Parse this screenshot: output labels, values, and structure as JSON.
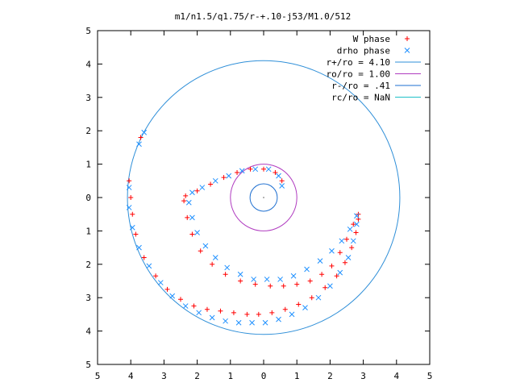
{
  "chart_data": {
    "type": "scatter",
    "title": "m1/n1.5/q1.75/r-+.10-j53/M1.0/512",
    "xlabel": "",
    "ylabel": "",
    "xlim": [
      -5,
      5
    ],
    "ylim": [
      -5,
      5
    ],
    "x_tick_labels": [
      "5",
      "4",
      "3",
      "2",
      "1",
      "0",
      "1",
      "2",
      "3",
      "4",
      "5"
    ],
    "y_tick_labels": [
      "5",
      "4",
      "3",
      "2",
      "1",
      "0",
      "1",
      "2",
      "3",
      "4",
      "5"
    ],
    "grid": false,
    "legend_position": "top-right",
    "series": [
      {
        "name": "W phase",
        "marker": "plus",
        "color": "#ff0000",
        "points": [
          [
            -3.7,
            1.8
          ],
          [
            -4.05,
            0.5
          ],
          [
            -4.0,
            0.0
          ],
          [
            -3.95,
            -0.5
          ],
          [
            -3.85,
            -1.1
          ],
          [
            -3.6,
            -1.8
          ],
          [
            -3.25,
            -2.35
          ],
          [
            -2.9,
            -2.75
          ],
          [
            -2.5,
            -3.05
          ],
          [
            -2.1,
            -3.25
          ],
          [
            -1.7,
            -3.35
          ],
          [
            -1.3,
            -3.4
          ],
          [
            -0.9,
            -3.45
          ],
          [
            -0.5,
            -3.5
          ],
          [
            -0.15,
            -3.5
          ],
          [
            0.25,
            -3.45
          ],
          [
            0.65,
            -3.35
          ],
          [
            1.05,
            -3.2
          ],
          [
            1.45,
            -3.0
          ],
          [
            1.85,
            -2.7
          ],
          [
            2.2,
            -2.35
          ],
          [
            2.45,
            -1.95
          ],
          [
            2.65,
            -1.5
          ],
          [
            2.78,
            -1.05
          ],
          [
            2.85,
            -0.65
          ],
          [
            2.85,
            -0.5
          ],
          [
            2.7,
            -0.8
          ],
          [
            2.5,
            -1.25
          ],
          [
            2.3,
            -1.65
          ],
          [
            2.05,
            -2.05
          ],
          [
            1.75,
            -2.3
          ],
          [
            1.4,
            -2.5
          ],
          [
            1.0,
            -2.6
          ],
          [
            0.6,
            -2.65
          ],
          [
            0.2,
            -2.65
          ],
          [
            -0.25,
            -2.6
          ],
          [
            -0.7,
            -2.5
          ],
          [
            -1.15,
            -2.3
          ],
          [
            -1.55,
            -2.0
          ],
          [
            -1.9,
            -1.6
          ],
          [
            -2.15,
            -1.1
          ],
          [
            -2.3,
            -0.6
          ],
          [
            -2.4,
            -0.1
          ],
          [
            -2.35,
            0.05
          ],
          [
            -2.0,
            0.2
          ],
          [
            -1.6,
            0.4
          ],
          [
            -1.2,
            0.6
          ],
          [
            -0.8,
            0.75
          ],
          [
            -0.4,
            0.85
          ],
          [
            0.0,
            0.85
          ],
          [
            0.35,
            0.75
          ],
          [
            0.55,
            0.5
          ]
        ]
      },
      {
        "name": "drho phase",
        "marker": "cross",
        "color": "#1e90ff",
        "points": [
          [
            -3.6,
            1.95
          ],
          [
            -3.75,
            1.6
          ],
          [
            -4.05,
            0.3
          ],
          [
            -4.05,
            -0.3
          ],
          [
            -3.95,
            -0.9
          ],
          [
            -3.75,
            -1.5
          ],
          [
            -3.45,
            -2.05
          ],
          [
            -3.1,
            -2.55
          ],
          [
            -2.75,
            -2.95
          ],
          [
            -2.35,
            -3.25
          ],
          [
            -1.95,
            -3.45
          ],
          [
            -1.55,
            -3.6
          ],
          [
            -1.15,
            -3.7
          ],
          [
            -0.75,
            -3.75
          ],
          [
            -0.35,
            -3.75
          ],
          [
            0.05,
            -3.75
          ],
          [
            0.45,
            -3.65
          ],
          [
            0.85,
            -3.5
          ],
          [
            1.25,
            -3.3
          ],
          [
            1.65,
            -3.0
          ],
          [
            2.0,
            -2.65
          ],
          [
            2.3,
            -2.25
          ],
          [
            2.55,
            -1.8
          ],
          [
            2.7,
            -1.3
          ],
          [
            2.8,
            -0.8
          ],
          [
            2.8,
            -0.55
          ],
          [
            2.6,
            -0.95
          ],
          [
            2.35,
            -1.3
          ],
          [
            2.05,
            -1.6
          ],
          [
            1.7,
            -1.9
          ],
          [
            1.3,
            -2.15
          ],
          [
            0.9,
            -2.35
          ],
          [
            0.5,
            -2.45
          ],
          [
            0.1,
            -2.45
          ],
          [
            -0.3,
            -2.45
          ],
          [
            -0.7,
            -2.3
          ],
          [
            -1.1,
            -2.1
          ],
          [
            -1.45,
            -1.8
          ],
          [
            -1.75,
            -1.45
          ],
          [
            -2.0,
            -1.05
          ],
          [
            -2.15,
            -0.6
          ],
          [
            -2.25,
            -0.15
          ],
          [
            -2.15,
            0.15
          ],
          [
            -1.85,
            0.3
          ],
          [
            -1.45,
            0.5
          ],
          [
            -1.05,
            0.65
          ],
          [
            -0.65,
            0.8
          ],
          [
            -0.25,
            0.85
          ],
          [
            0.15,
            0.85
          ],
          [
            0.45,
            0.65
          ],
          [
            0.55,
            0.35
          ]
        ]
      }
    ],
    "circles": [
      {
        "name": "r+/ro = 4.10",
        "radius": 4.1,
        "color": "#2f8fd8"
      },
      {
        "name": "ro/ro = 1.00",
        "radius": 1.0,
        "color": "#b03cc0"
      },
      {
        "name": "r-/ro = .41",
        "radius": 0.41,
        "color": "#1e6fd0"
      },
      {
        "name": "rc/ro = NaN",
        "radius": null,
        "color": "#20c0c8"
      }
    ]
  }
}
